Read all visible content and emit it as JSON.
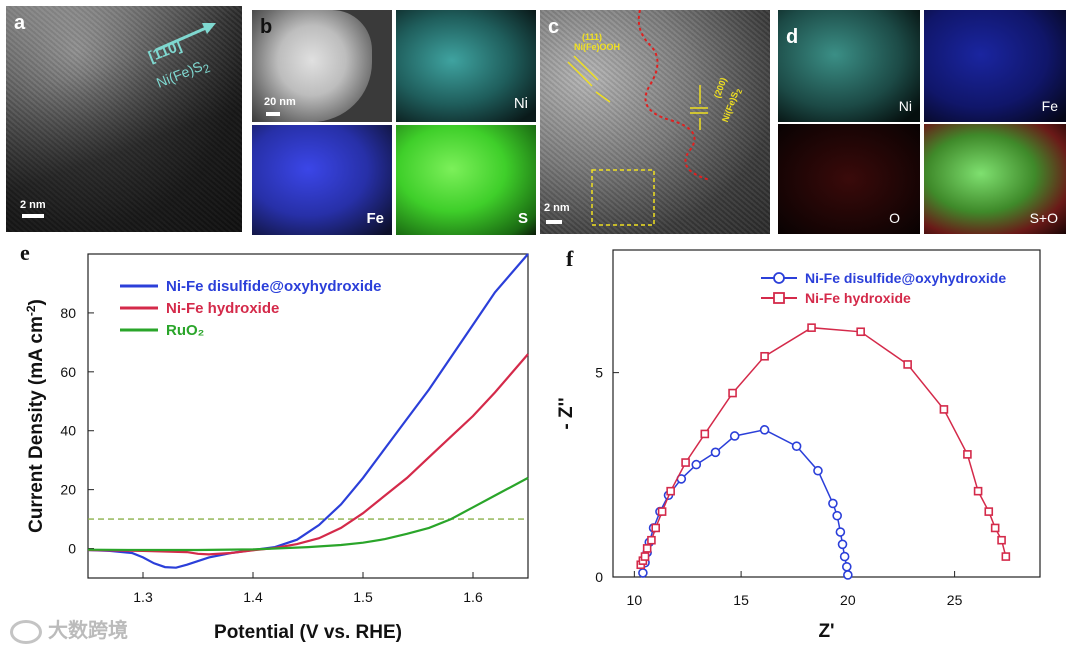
{
  "panels": {
    "a": {
      "letter": "a",
      "arrow_label": "[110]",
      "phase_label": "Ni(Fe)S",
      "phase_sub": "2",
      "scale": "2 nm"
    },
    "b": {
      "letter": "b",
      "scale": "20 nm",
      "maps": [
        "Ni",
        "Fe",
        "S"
      ]
    },
    "c": {
      "letter": "c",
      "plane1": "(111)",
      "phase1": "Ni(Fe)OOH",
      "plane2": "(200)",
      "phase2": "Ni(Fe)S",
      "phase2_sub": "2",
      "scale": "2 nm"
    },
    "d": {
      "letter": "d",
      "maps": [
        "Ni",
        "Fe",
        "O",
        "S+O"
      ]
    }
  },
  "watermark": "大数跨境",
  "colors": {
    "blue": "#2b3fd9",
    "red": "#d42a4a",
    "green": "#2aa52a",
    "dashed": "#8bb04a"
  },
  "chart_data": [
    {
      "id": "e",
      "letter": "e",
      "type": "line",
      "xlabel": "Potential (V vs. RHE)",
      "ylabel": "Current Density (mA cm",
      "ylabel_sup": "-2",
      "ylabel_end": ")",
      "xlim": [
        1.25,
        1.65
      ],
      "ylim": [
        -10,
        100
      ],
      "xticks": [
        1.3,
        1.4,
        1.5,
        1.6
      ],
      "xtick_labels": [
        "1.3",
        "1.4",
        "1.5",
        "1.6"
      ],
      "yticks": [
        0,
        20,
        40,
        60,
        80
      ],
      "ytick_labels": [
        "0",
        "20",
        "40",
        "60",
        "80"
      ],
      "reference_line_y": 10,
      "series": [
        {
          "name": "Ni-Fe disulfide@oxyhydroxide",
          "color": "#2b3fd9",
          "x": [
            1.25,
            1.27,
            1.29,
            1.3,
            1.31,
            1.32,
            1.33,
            1.34,
            1.36,
            1.38,
            1.4,
            1.42,
            1.44,
            1.46,
            1.48,
            1.5,
            1.52,
            1.54,
            1.56,
            1.58,
            1.6,
            1.62,
            1.65
          ],
          "y": [
            -0.5,
            -0.8,
            -1.5,
            -3,
            -5,
            -6.3,
            -6.5,
            -5.5,
            -3,
            -1.5,
            -0.5,
            0.5,
            3,
            8,
            15,
            24,
            34,
            44,
            54,
            65,
            76,
            87,
            104
          ]
        },
        {
          "name": "Ni-Fe hydroxide",
          "color": "#d42a4a",
          "x": [
            1.25,
            1.3,
            1.34,
            1.35,
            1.36,
            1.38,
            1.4,
            1.42,
            1.44,
            1.46,
            1.48,
            1.5,
            1.52,
            1.54,
            1.56,
            1.58,
            1.6,
            1.62,
            1.65
          ],
          "y": [
            -0.5,
            -0.8,
            -1.2,
            -1.8,
            -2.0,
            -1.5,
            -0.6,
            0.2,
            1.5,
            3.5,
            7,
            12,
            18,
            24,
            31,
            38,
            45,
            53,
            66
          ]
        },
        {
          "name": "RuO₂",
          "color": "#2aa52a",
          "x": [
            1.25,
            1.3,
            1.35,
            1.4,
            1.45,
            1.48,
            1.5,
            1.52,
            1.54,
            1.56,
            1.58,
            1.6,
            1.62,
            1.65
          ],
          "y": [
            -0.4,
            -0.5,
            -0.5,
            -0.3,
            0.5,
            1.2,
            2.0,
            3.2,
            5,
            7,
            10,
            14,
            18,
            24
          ]
        }
      ]
    },
    {
      "id": "f",
      "letter": "f",
      "type": "scatter",
      "xlabel": "Z'",
      "ylabel": "- Z''",
      "xlim": [
        9,
        29
      ],
      "ylim": [
        0,
        8
      ],
      "xticks": [
        10,
        15,
        20,
        25
      ],
      "xtick_labels": [
        "10",
        "15",
        "20",
        "25"
      ],
      "yticks": [
        0,
        5
      ],
      "ytick_labels": [
        "0",
        "5"
      ],
      "series": [
        {
          "name": "Ni-Fe disulfide@oxyhydroxide",
          "color": "#2b3fd9",
          "marker": "circle",
          "x": [
            10.4,
            10.5,
            10.6,
            10.7,
            10.9,
            11.2,
            11.6,
            12.2,
            12.9,
            13.8,
            14.7,
            16.1,
            17.6,
            18.6,
            19.3,
            19.5,
            19.65,
            19.75,
            19.85,
            19.95,
            20.0
          ],
          "y": [
            0.1,
            0.35,
            0.6,
            0.85,
            1.2,
            1.6,
            2.0,
            2.4,
            2.75,
            3.05,
            3.45,
            3.6,
            3.2,
            2.6,
            1.8,
            1.5,
            1.1,
            0.8,
            0.5,
            0.25,
            0.05
          ]
        },
        {
          "name": "Ni-Fe hydroxide",
          "color": "#d42a4a",
          "marker": "square",
          "x": [
            10.3,
            10.4,
            10.5,
            10.6,
            10.8,
            11.0,
            11.3,
            11.7,
            12.4,
            13.3,
            14.6,
            16.1,
            18.3,
            20.6,
            22.8,
            24.5,
            25.6,
            26.1,
            26.6,
            26.9,
            27.2,
            27.4
          ],
          "y": [
            0.3,
            0.4,
            0.5,
            0.7,
            0.9,
            1.2,
            1.6,
            2.1,
            2.8,
            3.5,
            4.5,
            5.4,
            6.1,
            6.0,
            5.2,
            4.1,
            3.0,
            2.1,
            1.6,
            1.2,
            0.9,
            0.5
          ]
        }
      ]
    }
  ]
}
